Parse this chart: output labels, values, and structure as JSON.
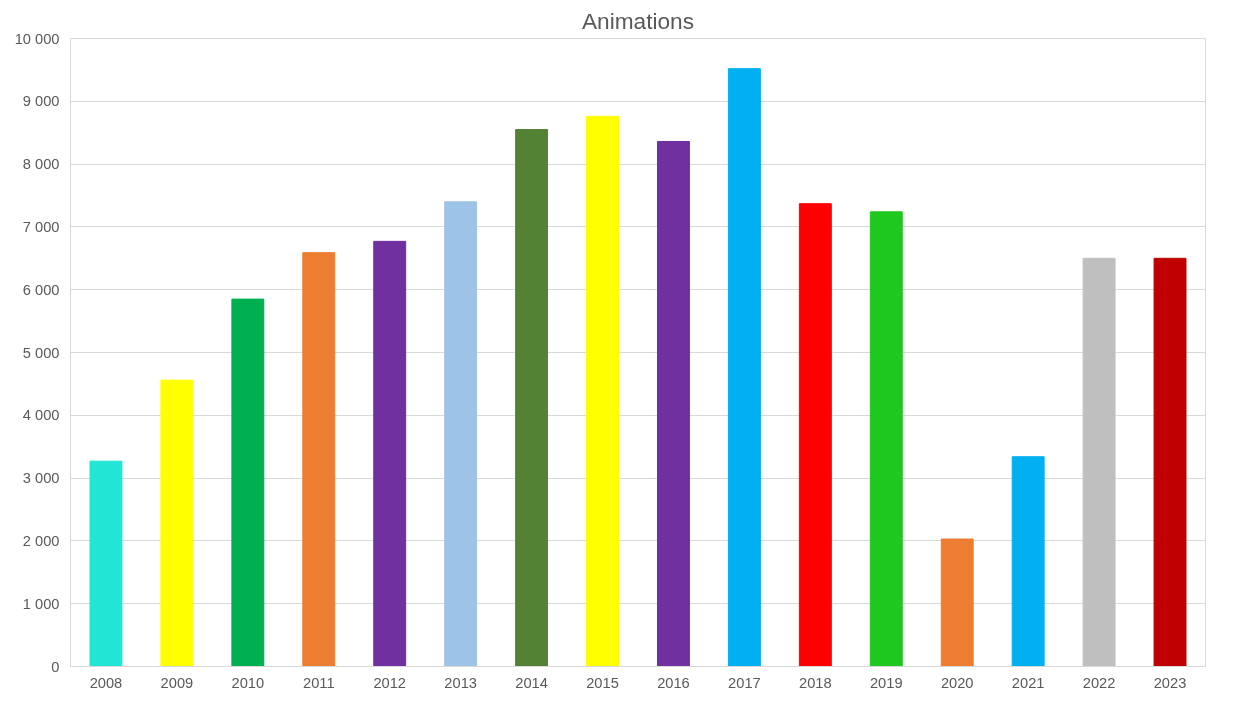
{
  "chart_data": {
    "type": "bar",
    "title": "Animations",
    "categories": [
      "2008",
      "2009",
      "2010",
      "2011",
      "2012",
      "2013",
      "2014",
      "2015",
      "2016",
      "2017",
      "2018",
      "2019",
      "2020",
      "2021",
      "2022",
      "2023"
    ],
    "values": [
      3270,
      4560,
      5850,
      6590,
      6770,
      7400,
      8550,
      8760,
      8360,
      9520,
      7370,
      7240,
      2030,
      3340,
      6500,
      6500
    ],
    "colors": [
      "#22e5d6",
      "#ffff00",
      "#00b050",
      "#ed7d31",
      "#7030a0",
      "#9dc3e6",
      "#548235",
      "#ffff00",
      "#7030a0",
      "#00b0f0",
      "#ff0000",
      "#1ec81e",
      "#ed7d31",
      "#00b0f0",
      "#bfbfbf",
      "#c00000"
    ],
    "ylim": [
      0,
      10000
    ],
    "yticks": [
      {
        "value": 0,
        "label": "0"
      },
      {
        "value": 1000,
        "label": "1 000"
      },
      {
        "value": 2000,
        "label": "2 000"
      },
      {
        "value": 3000,
        "label": "3 000"
      },
      {
        "value": 4000,
        "label": "4 000"
      },
      {
        "value": 5000,
        "label": "5 000"
      },
      {
        "value": 6000,
        "label": "6 000"
      },
      {
        "value": 7000,
        "label": "7 000"
      },
      {
        "value": 8000,
        "label": "8 000"
      },
      {
        "value": 9000,
        "label": "9 000"
      },
      {
        "value": 10000,
        "label": "10 000"
      }
    ],
    "grid": "y"
  }
}
